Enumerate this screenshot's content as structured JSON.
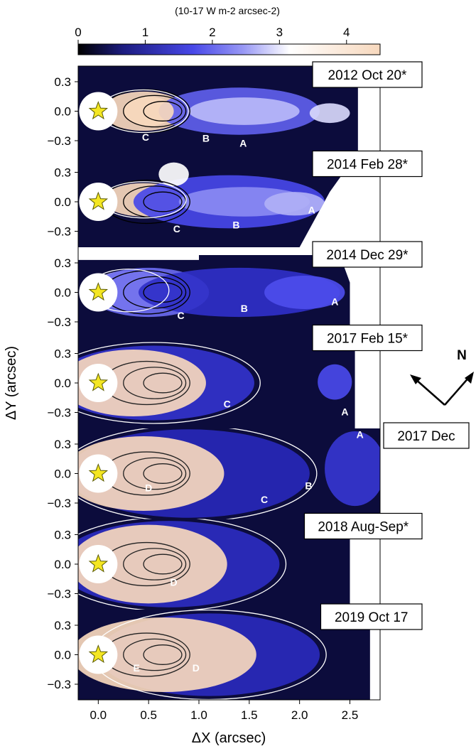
{
  "chart_data": {
    "type": "heatmap",
    "colorbar": {
      "label": "(10-17 W m-2 arcsec-2)",
      "ticks": [
        0,
        1,
        2,
        3,
        4
      ],
      "range": [
        0,
        4.5
      ],
      "colors": [
        "#000000",
        "#1c1c80",
        "#4848e8",
        "#9a9af5",
        "#ffffff",
        "#f7d8bd"
      ]
    },
    "xlabel": "ΔX (arcsec)",
    "ylabel": "ΔY (arcsec)",
    "xlim": [
      -0.2,
      2.8
    ],
    "x_ticks": [
      {
        "value": 0.0,
        "label": "0.0"
      },
      {
        "value": 0.5,
        "label": "0.5"
      },
      {
        "value": 1.0,
        "label": "1.0"
      },
      {
        "value": 1.5,
        "label": "1.5"
      },
      {
        "value": 2.0,
        "label": "2.0"
      },
      {
        "value": 2.5,
        "label": "2.5"
      }
    ],
    "y_ticks": [
      {
        "value": 0.3,
        "label": "0.3"
      },
      {
        "value": 0.0,
        "label": "0.0"
      },
      {
        "value": -0.3,
        "label": "−0.3"
      }
    ],
    "panels": [
      {
        "epoch": "2012 Oct 20*",
        "features": [
          {
            "label": "C",
            "x": 0.47,
            "y": -0.3
          },
          {
            "label": "B",
            "x": 1.07,
            "y": -0.31
          },
          {
            "label": "A",
            "x": 1.44,
            "y": -0.36
          }
        ]
      },
      {
        "epoch": "2014 Feb 28*",
        "features": [
          {
            "label": "A",
            "x": 2.12,
            "y": -0.12
          },
          {
            "label": "B",
            "x": 1.37,
            "y": -0.27
          },
          {
            "label": "C",
            "x": 0.78,
            "y": -0.31
          }
        ]
      },
      {
        "epoch": "2014 Dec 29*",
        "features": [
          {
            "label": "A",
            "x": 2.35,
            "y": -0.13
          },
          {
            "label": "B",
            "x": 1.45,
            "y": -0.2
          },
          {
            "label": "C",
            "x": 0.82,
            "y": -0.27
          }
        ]
      },
      {
        "epoch": "2017 Feb 15*",
        "features": [
          {
            "label": "C",
            "x": 1.28,
            "y": -0.25
          },
          {
            "label": "A",
            "x": 2.45,
            "y": -0.33
          }
        ]
      },
      {
        "epoch": "2017 Dec",
        "features": [
          {
            "label": "A",
            "x": 2.6,
            "y": 0.36
          },
          {
            "label": "B",
            "x": 2.09,
            "y": -0.16
          },
          {
            "label": "C",
            "x": 1.65,
            "y": -0.3
          },
          {
            "label": "D",
            "x": 0.5,
            "y": -0.18
          }
        ]
      },
      {
        "epoch": "2018 Aug-Sep*",
        "features": [
          {
            "label": "D",
            "x": 0.75,
            "y": -0.22
          }
        ]
      },
      {
        "epoch": "2019 Oct 17",
        "features": [
          {
            "label": "E",
            "x": 0.38,
            "y": -0.17
          },
          {
            "label": "D",
            "x": 0.97,
            "y": -0.17
          }
        ]
      }
    ]
  },
  "compass": {
    "label": "N"
  }
}
